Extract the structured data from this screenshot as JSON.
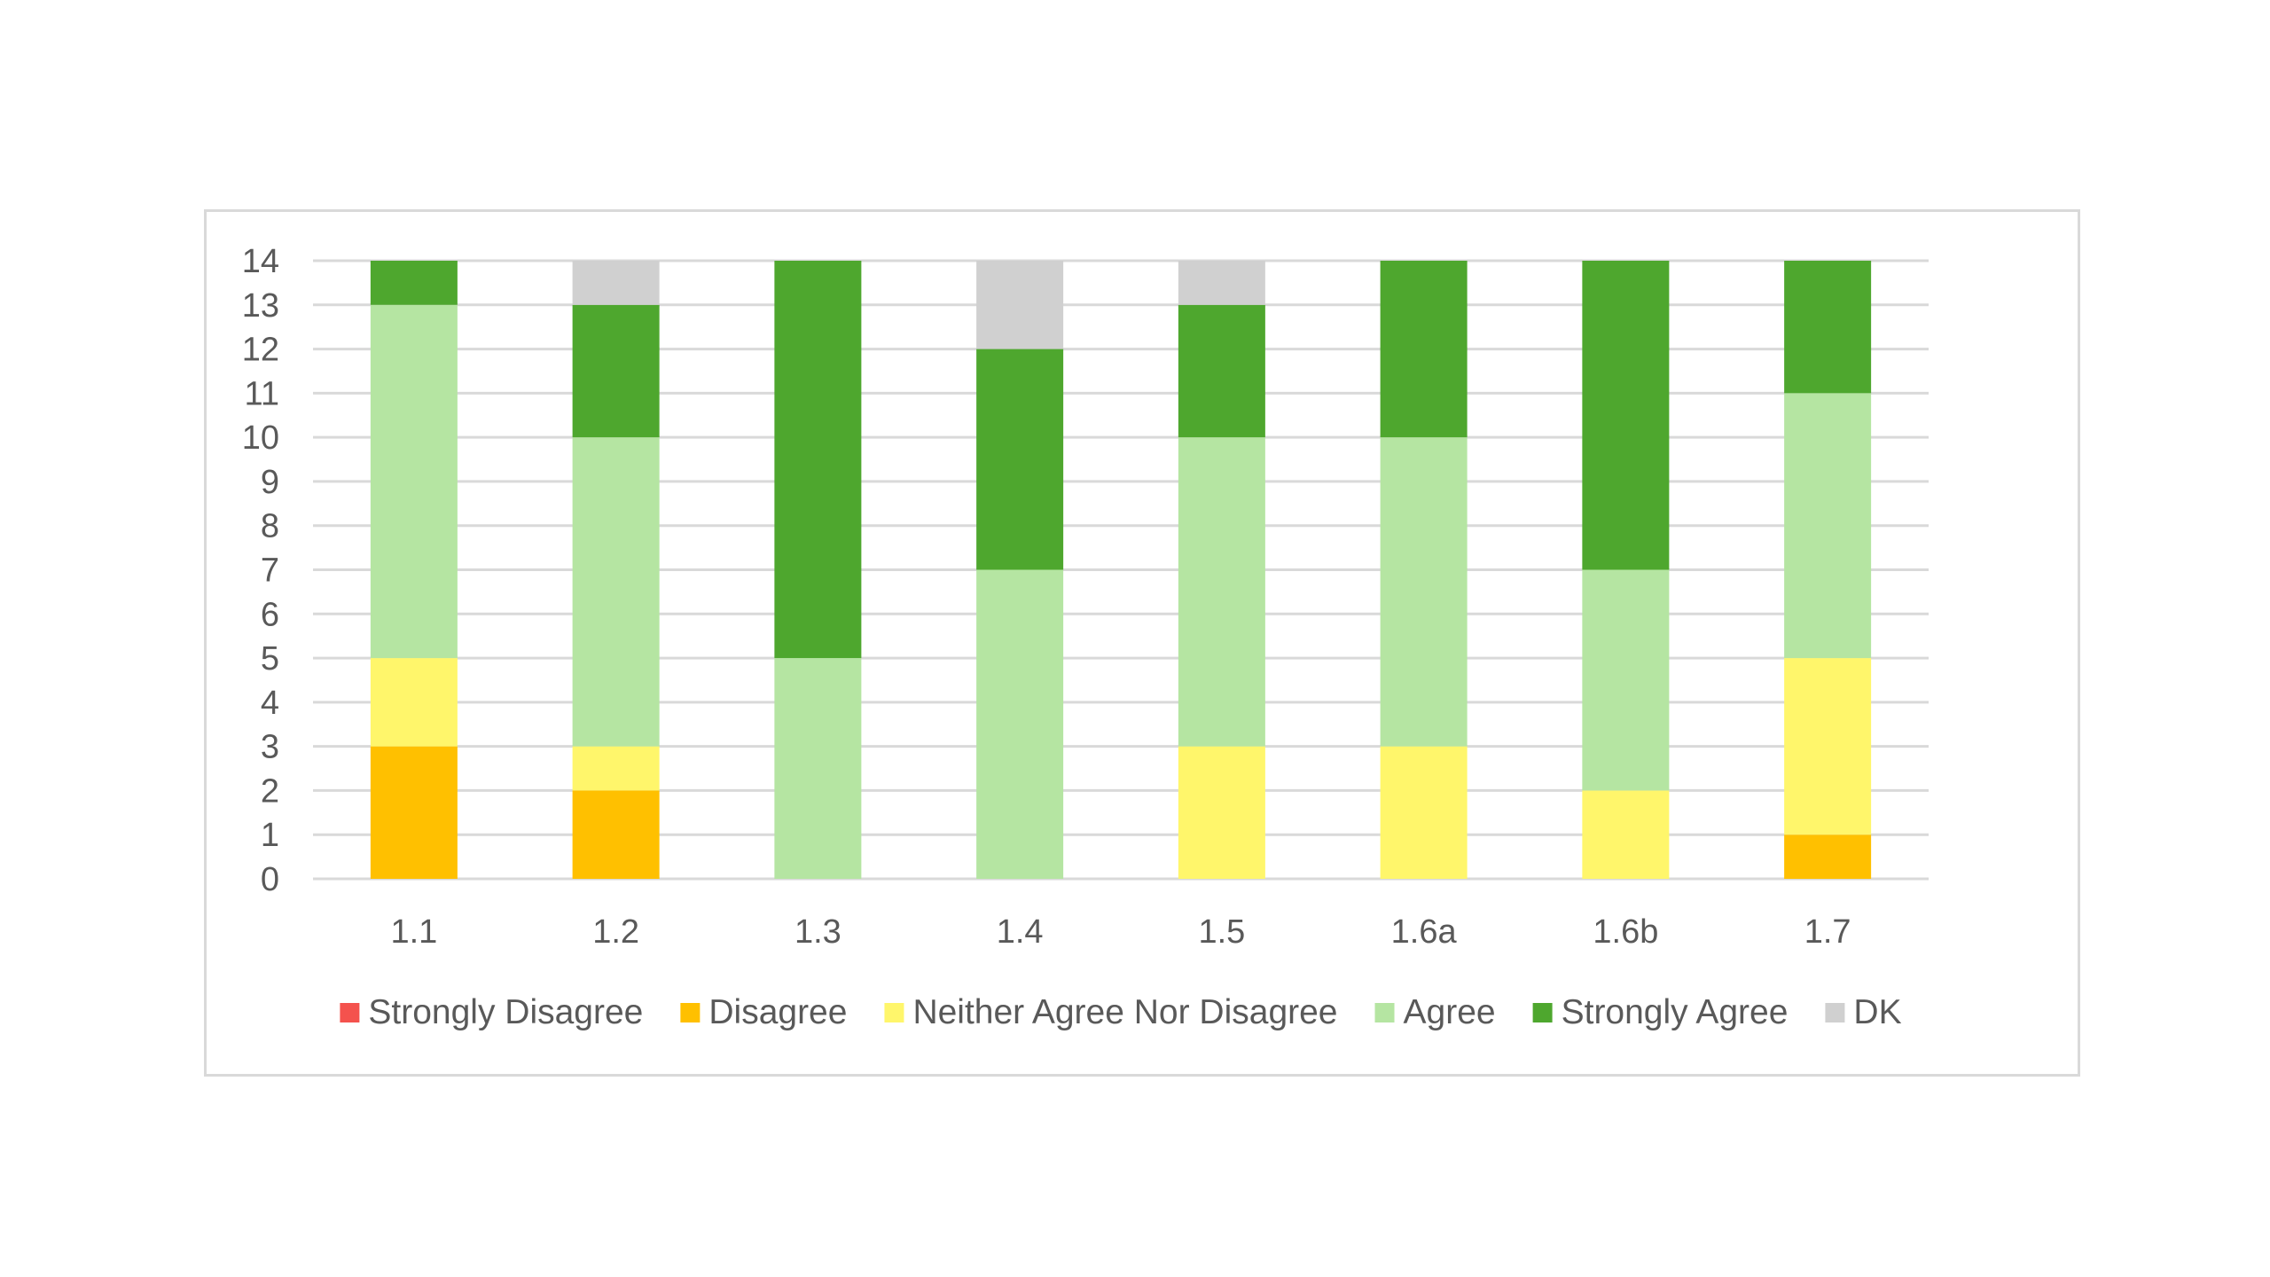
{
  "chart_data": {
    "type": "bar",
    "stacked": true,
    "title": "",
    "xlabel": "",
    "ylabel": "",
    "categories": [
      "1.1",
      "1.2",
      "1.3",
      "1.4",
      "1.5",
      "1.6a",
      "1.6b",
      "1.7"
    ],
    "ylim": [
      0,
      14
    ],
    "yticks": [
      "0",
      "1",
      "2",
      "3",
      "4",
      "5",
      "6",
      "7",
      "8",
      "9",
      "10",
      "11",
      "12",
      "13",
      "14"
    ],
    "grid": true,
    "legend_position": "bottom",
    "series": [
      {
        "name": "Strongly Disagree",
        "color": "#f4524d",
        "values": [
          0,
          0,
          0,
          0,
          0,
          0,
          0,
          0
        ]
      },
      {
        "name": "Disagree",
        "color": "#ffc000",
        "values": [
          3,
          2,
          0,
          0,
          0,
          0,
          0,
          1
        ]
      },
      {
        "name": "Neither Agree Nor Disagree",
        "color": "#fff66b",
        "values": [
          2,
          1,
          0,
          0,
          3,
          3,
          2,
          4
        ]
      },
      {
        "name": "Agree",
        "color": "#b5e5a2",
        "values": [
          8,
          7,
          5,
          7,
          7,
          7,
          5,
          6
        ]
      },
      {
        "name": "Strongly Agree",
        "color": "#4ea72e",
        "values": [
          1,
          3,
          9,
          5,
          3,
          4,
          7,
          3
        ]
      },
      {
        "name": "DK",
        "color": "#d0d0d0",
        "values": [
          0,
          1,
          0,
          2,
          1,
          0,
          0,
          0
        ]
      }
    ]
  }
}
